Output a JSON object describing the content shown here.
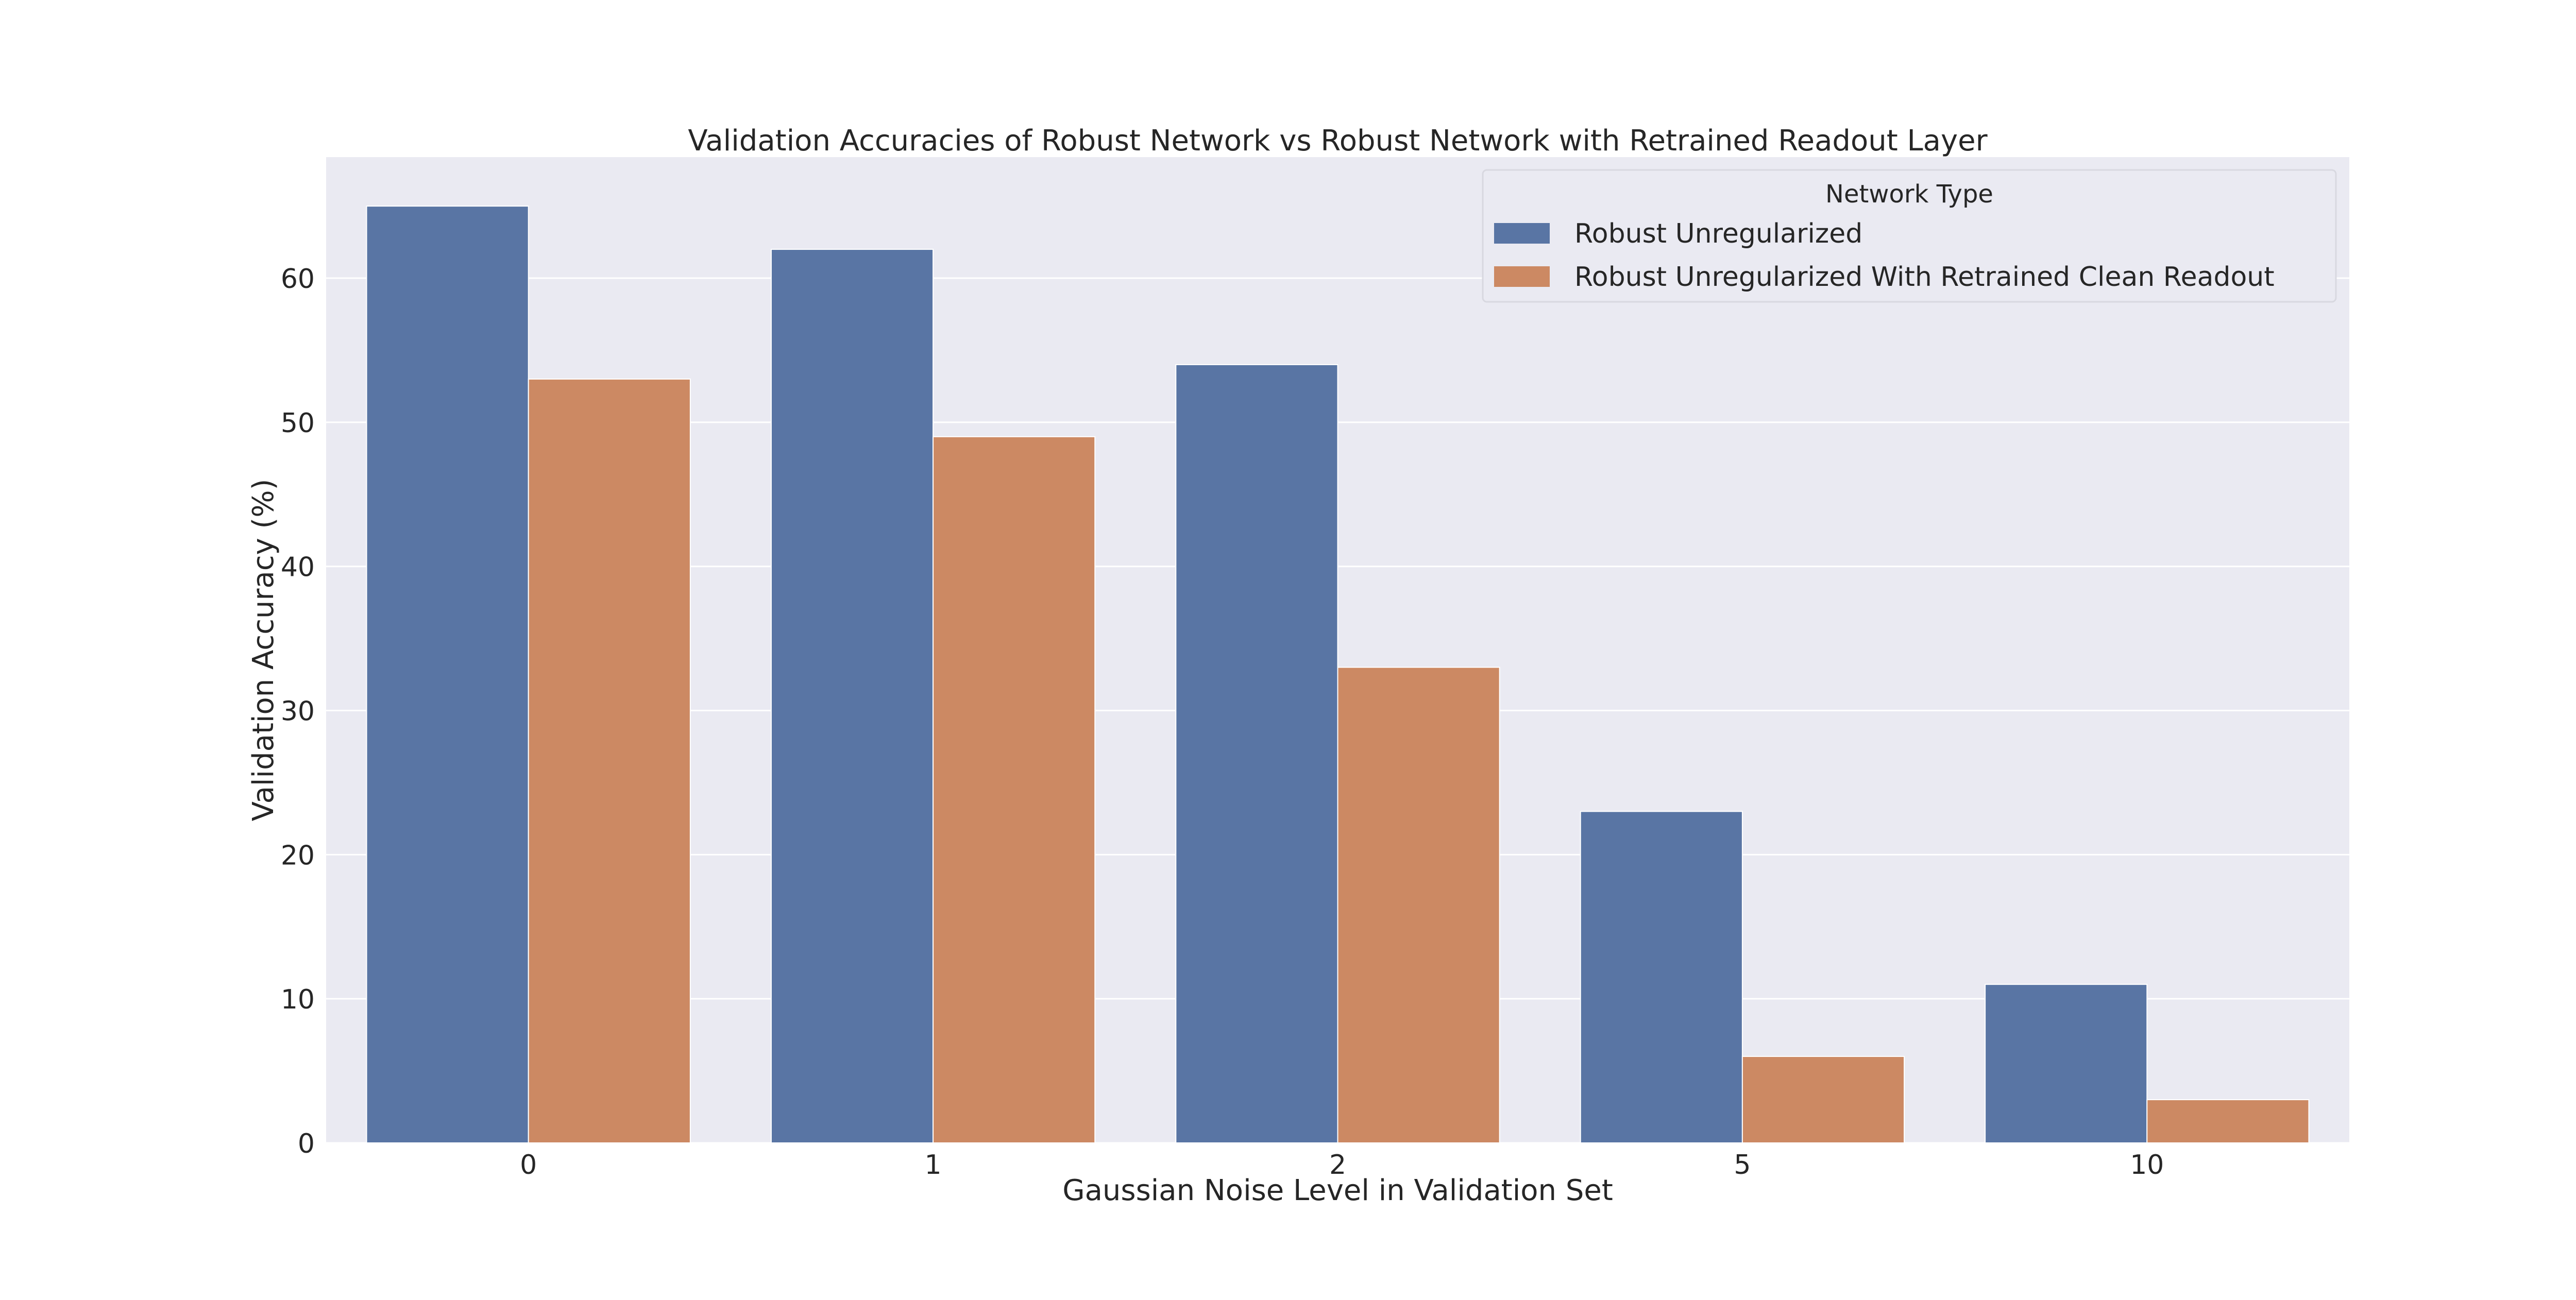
{
  "chart_data": {
    "type": "bar",
    "title": "Validation Accuracies of Robust Network vs Robust Network with Retrained Readout Layer",
    "xlabel": "Gaussian Noise Level in Validation Set",
    "ylabel": "Validation Accuracy (%)",
    "categories": [
      "0",
      "1",
      "2",
      "5",
      "10"
    ],
    "series": [
      {
        "name": "Robust Unregularized",
        "values": [
          65,
          62,
          54,
          23,
          11
        ],
        "color": "#5975a4"
      },
      {
        "name": "Robust Unregularized With Retrained Clean Readout",
        "values": [
          53,
          49,
          33,
          6,
          3
        ],
        "color": "#cc8963"
      }
    ],
    "ylim": [
      0,
      68.4
    ],
    "yticks": [
      0,
      10,
      20,
      30,
      40,
      50,
      60
    ],
    "grid": true,
    "legend": {
      "title": "Network Type",
      "position": "top-right"
    },
    "colors": {
      "plot_background": "#eaeaf2",
      "grid": "#ffffff"
    }
  }
}
